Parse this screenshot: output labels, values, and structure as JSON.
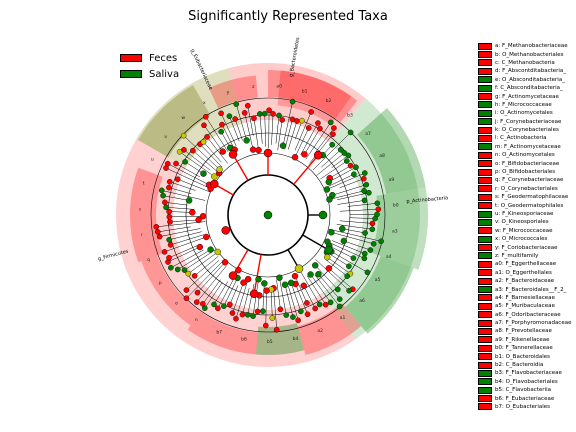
{
  "title": "Significantly Represented Taxa",
  "colors": {
    "feces": "#ff0000",
    "saliva": "#008000",
    "feces_shade": "#ffb0b0",
    "saliva_shade": "#8fcf8f"
  },
  "legend": [
    {
      "label": "Feces",
      "group": "feces"
    },
    {
      "label": "Saliva",
      "group": "saliva"
    }
  ],
  "cladogram": {
    "outer_labels": [
      "g_Eubacteriaceae",
      "g_Bacteroidetes",
      "p_Actinobacteria",
      "g_Firmicutes"
    ],
    "ring_letters": [
      "a0",
      "b1",
      "b2",
      "b3",
      "a7",
      "a8",
      "a9",
      "b0",
      "a3",
      "a4",
      "a5",
      "a6",
      "a1",
      "a2",
      "b4",
      "b5",
      "b6",
      "b7",
      "n",
      "o",
      "p",
      "q",
      "r",
      "s",
      "t",
      "u",
      "v",
      "w",
      "x",
      "y",
      "z"
    ]
  },
  "clade_list": [
    {
      "label": "a: F_Methanobacteriaceae",
      "group": "feces"
    },
    {
      "label": "b: O_Methanobacteriales",
      "group": "feces"
    },
    {
      "label": "c: C_Methanobacteria",
      "group": "feces"
    },
    {
      "label": "d: F_Abscontditabacteria_",
      "group": "feces"
    },
    {
      "label": "e: O_Absconditabacteria_",
      "group": "saliva"
    },
    {
      "label": "f: C_Absconditabacteria_",
      "group": "saliva"
    },
    {
      "label": "g: F_Actinomycetaceae",
      "group": "feces"
    },
    {
      "label": "h: F_Micrococcaceae",
      "group": "saliva"
    },
    {
      "label": "i: O_Actinomycetales",
      "group": "saliva"
    },
    {
      "label": "j: F_Corynebacteriaceae",
      "group": "saliva"
    },
    {
      "label": "k: O_Corynebacteriales",
      "group": "feces"
    },
    {
      "label": "l: C_Actinobacteria",
      "group": "feces"
    },
    {
      "label": "m: F_Actinomycetaceae",
      "group": "saliva"
    },
    {
      "label": "n: O_Actinomycetales",
      "group": "feces"
    },
    {
      "label": "o: F_Bifidobacteriaceae",
      "group": "feces"
    },
    {
      "label": "p: O_Bifidobacteriales",
      "group": "feces"
    },
    {
      "label": "q: F_Corynebacteriaceae",
      "group": "feces"
    },
    {
      "label": "r: O_Corynebacteriales",
      "group": "feces"
    },
    {
      "label": "s: F_Geodermatophilaceae",
      "group": "feces"
    },
    {
      "label": "t: O_Geodermatophilales",
      "group": "feces"
    },
    {
      "label": "u: F_Kineosporiaceae",
      "group": "saliva"
    },
    {
      "label": "v: O_Kineosporiales",
      "group": "saliva"
    },
    {
      "label": "w: F_Micrococcaceae",
      "group": "feces"
    },
    {
      "label": "x: O_Micrococcales",
      "group": "saliva"
    },
    {
      "label": "y: F_Coriobacteriaceae",
      "group": "feces"
    },
    {
      "label": "z: F_multifamily",
      "group": "saliva"
    },
    {
      "label": "a0: F_Eggerthellaceae",
      "group": "feces"
    },
    {
      "label": "a1: O_Eggerthellales",
      "group": "feces"
    },
    {
      "label": "a2: F_Bacteroidaceae",
      "group": "feces"
    },
    {
      "label": "a3: F_Bacteroidales__F_2_",
      "group": "saliva"
    },
    {
      "label": "a4: F_Barnesiellaceae",
      "group": "feces"
    },
    {
      "label": "a5: F_Muribaculaceae",
      "group": "feces"
    },
    {
      "label": "a6: F_Odoribacteraceae",
      "group": "feces"
    },
    {
      "label": "a7: F_Porphyromonadaceae",
      "group": "feces"
    },
    {
      "label": "a8: F_Prevotellaceae",
      "group": "feces"
    },
    {
      "label": "a9: F_Rikenellaceae",
      "group": "feces"
    },
    {
      "label": "b0: F_Tannerellaceae",
      "group": "feces"
    },
    {
      "label": "b1: O_Bacteroidales",
      "group": "feces"
    },
    {
      "label": "b2: C_Bacteroidia",
      "group": "feces"
    },
    {
      "label": "b3: F_Flavobacteriaceae",
      "group": "saliva"
    },
    {
      "label": "b4: O_Flavobacteriales",
      "group": "saliva"
    },
    {
      "label": "b5: C_Flavobacteriia",
      "group": "saliva"
    },
    {
      "label": "b6: F_Eubacteriaceae",
      "group": "feces"
    },
    {
      "label": "b7: O_Eubacteriales",
      "group": "feces"
    }
  ]
}
